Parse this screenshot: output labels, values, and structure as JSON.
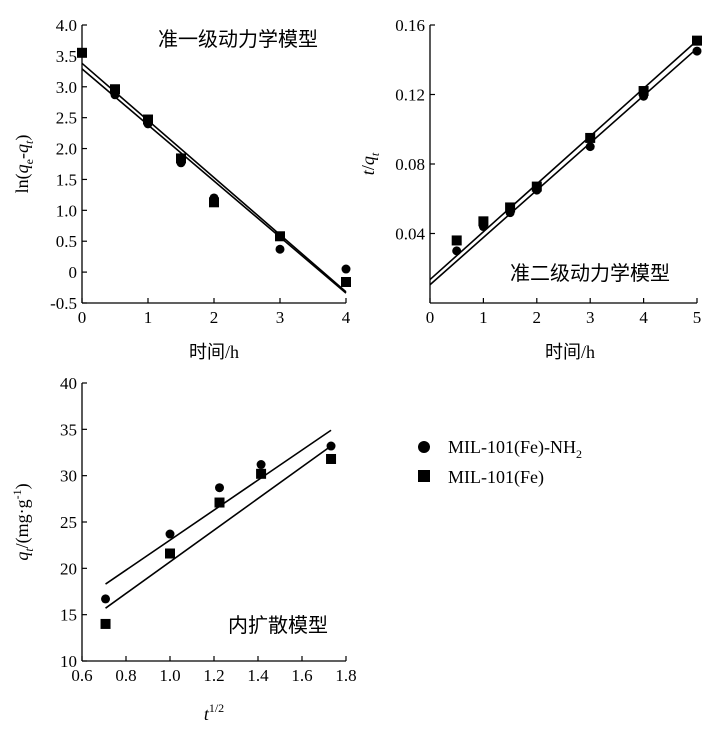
{
  "legend": {
    "items": [
      {
        "label": "MIL-101(Fe)-NH",
        "label_sub": "2",
        "marker": "circle"
      },
      {
        "label": "MIL-101(Fe)",
        "marker": "square"
      }
    ]
  },
  "chart_data": [
    {
      "type": "scatter",
      "title": "准一级动力学模型",
      "xlabel": "时间/h",
      "ylabel": "ln(qe-qt)",
      "ylabel_parts": {
        "pre": "ln(",
        "q1": "q",
        "sub1": "e",
        "mid": "-",
        "q2": "q",
        "sub2": "t",
        "post": ")"
      },
      "xlim": [
        0,
        4
      ],
      "ylim": [
        -0.5,
        4.0
      ],
      "xticks": [
        "0",
        "1",
        "2",
        "3",
        "4"
      ],
      "yticks": [
        "-0.5",
        "0",
        "0.5",
        "1.0",
        "1.5",
        "2.0",
        "2.5",
        "3.0",
        "3.5",
        "4.0"
      ],
      "series": [
        {
          "name": "MIL-101(Fe)-NH2",
          "marker": "circle",
          "x": [
            0,
            0.5,
            1.0,
            1.5,
            2.0,
            3.0,
            4.0
          ],
          "y": [
            3.55,
            2.87,
            2.4,
            1.77,
            1.2,
            0.37,
            0.05
          ],
          "fit": {
            "x": [
              0,
              4
            ],
            "y": [
              3.38,
              -0.32
            ]
          }
        },
        {
          "name": "MIL-101(Fe)",
          "marker": "square",
          "x": [
            0,
            0.5,
            1.0,
            1.5,
            2.0,
            3.0,
            4.0
          ],
          "y": [
            3.55,
            2.96,
            2.47,
            1.84,
            1.13,
            0.58,
            -0.16
          ],
          "fit": {
            "x": [
              0,
              4
            ],
            "y": [
              3.29,
              -0.34
            ]
          }
        }
      ]
    },
    {
      "type": "scatter",
      "title": "准二级动力学模型",
      "xlabel": "时间/h",
      "ylabel": "t/qt",
      "ylabel_parts": {
        "t": "t",
        "slash": "/",
        "q": "q",
        "sub": "t"
      },
      "xlim": [
        0,
        5
      ],
      "ylim": [
        0,
        0.16
      ],
      "xticks": [
        "0",
        "1",
        "2",
        "3",
        "4",
        "5"
      ],
      "yticks": [
        "0.04",
        "0.08",
        "0.12",
        "0.16"
      ],
      "series": [
        {
          "name": "MIL-101(Fe)-NH2",
          "marker": "circle",
          "x": [
            0.5,
            1.0,
            1.5,
            2.0,
            3.0,
            4.0,
            5.0
          ],
          "y": [
            0.03,
            0.044,
            0.052,
            0.065,
            0.09,
            0.119,
            0.145
          ],
          "fit": {
            "x": [
              0,
              5
            ],
            "y": [
              0.0105,
              0.1465
            ]
          }
        },
        {
          "name": "MIL-101(Fe)",
          "marker": "square",
          "x": [
            0.5,
            1.0,
            1.5,
            2.0,
            3.0,
            4.0,
            5.0
          ],
          "y": [
            0.036,
            0.047,
            0.055,
            0.067,
            0.095,
            0.122,
            0.151
          ],
          "fit": {
            "x": [
              0,
              5
            ],
            "y": [
              0.0135,
              0.151
            ]
          }
        }
      ]
    },
    {
      "type": "scatter",
      "title": "内扩散模型",
      "xlabel": "t1/2",
      "xlabel_parts": {
        "t": "t",
        "sup": "1/2"
      },
      "ylabel": "qt/(mg·g-1)",
      "ylabel_parts": {
        "q": "q",
        "sub": "t",
        "rest": "/(mg·g",
        "sup": "-1",
        "close": ")"
      },
      "xlim": [
        0.6,
        1.8
      ],
      "ylim": [
        10,
        40
      ],
      "xticks": [
        "0.6",
        "0.8",
        "1.0",
        "1.2",
        "1.4",
        "1.6",
        "1.8"
      ],
      "yticks": [
        "10",
        "15",
        "20",
        "25",
        "30",
        "35",
        "40"
      ],
      "series": [
        {
          "name": "MIL-101(Fe)-NH2",
          "marker": "circle",
          "x": [
            0.707,
            1.0,
            1.225,
            1.414,
            1.732
          ],
          "y": [
            16.7,
            23.7,
            28.7,
            31.2,
            33.2
          ],
          "fit": {
            "x": [
              0.707,
              1.732
            ],
            "y": [
              18.3,
              34.9
            ]
          }
        },
        {
          "name": "MIL-101(Fe)",
          "marker": "square",
          "x": [
            0.707,
            1.0,
            1.225,
            1.414,
            1.732
          ],
          "y": [
            14.0,
            21.6,
            27.1,
            30.2,
            31.8
          ],
          "fit": {
            "x": [
              0.707,
              1.732
            ],
            "y": [
              15.7,
              33.2
            ]
          }
        }
      ]
    }
  ]
}
